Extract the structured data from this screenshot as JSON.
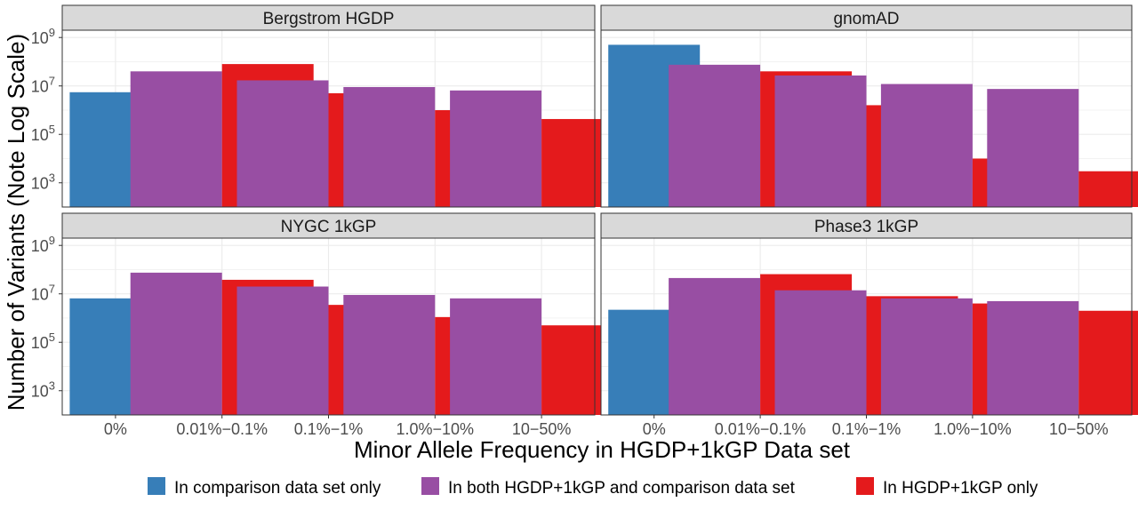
{
  "chart_data": {
    "type": "bar",
    "layout": "facet-grid-2x2",
    "y_scale": "log10",
    "ylim": [
      100,
      2000000000
    ],
    "y_ticks": [
      {
        "value": 1000,
        "base": "10",
        "exp": "3"
      },
      {
        "value": 100000,
        "base": "10",
        "exp": "5"
      },
      {
        "value": 10000000,
        "base": "10",
        "exp": "7"
      },
      {
        "value": 1000000000,
        "base": "10",
        "exp": "9"
      }
    ],
    "grid": true,
    "xlabel": "Minor Allele Frequency in HGDP+1kGP Data set",
    "ylabel": "Number of Variants (Note Log Scale)",
    "categories": [
      "0%",
      "0.01%−0.1%",
      "0.1%−1%",
      "1.0%−10%",
      "10−50%"
    ],
    "legend": {
      "position": "bottom",
      "entries": [
        {
          "key": "comparison",
          "label": "In comparison data set only",
          "color": "#377EB8"
        },
        {
          "key": "both",
          "label": "In both HGDP+1kGP and comparison data set",
          "color": "#984EA3"
        },
        {
          "key": "hgdp",
          "label": "In HGDP+1kGP only",
          "color": "#E41A1C"
        }
      ]
    },
    "panels": [
      {
        "title": "Bergstrom HGDP",
        "groups": [
          {
            "category": "0%",
            "bars": [
              {
                "series": "comparison",
                "value": 5500000
              }
            ]
          },
          {
            "category": "0.01%−0.1%",
            "bars": [
              {
                "series": "both",
                "value": 40000000
              },
              {
                "series": "hgdp",
                "value": 80000000
              }
            ]
          },
          {
            "category": "0.1%−1%",
            "bars": [
              {
                "series": "both",
                "value": 17000000
              },
              {
                "series": "hgdp",
                "value": 5000000
              }
            ]
          },
          {
            "category": "1.0%−10%",
            "bars": [
              {
                "series": "both",
                "value": 9000000
              },
              {
                "series": "hgdp",
                "value": 1000000
              }
            ]
          },
          {
            "category": "10−50%",
            "bars": [
              {
                "series": "both",
                "value": 6500000
              },
              {
                "series": "hgdp",
                "value": 430000
              }
            ]
          }
        ]
      },
      {
        "title": "gnomAD",
        "groups": [
          {
            "category": "0%",
            "bars": [
              {
                "series": "comparison",
                "value": 500000000
              }
            ]
          },
          {
            "category": "0.01%−0.1%",
            "bars": [
              {
                "series": "both",
                "value": 75000000
              },
              {
                "series": "hgdp",
                "value": 40000000
              }
            ]
          },
          {
            "category": "0.1%−1%",
            "bars": [
              {
                "series": "both",
                "value": 27000000
              },
              {
                "series": "hgdp",
                "value": 1600000
              }
            ]
          },
          {
            "category": "1.0%−10%",
            "bars": [
              {
                "series": "both",
                "value": 12000000
              },
              {
                "series": "hgdp",
                "value": 10000
              }
            ]
          },
          {
            "category": "10−50%",
            "bars": [
              {
                "series": "both",
                "value": 7500000
              },
              {
                "series": "hgdp",
                "value": 3000
              }
            ]
          }
        ]
      },
      {
        "title": "NYGC 1kGP",
        "groups": [
          {
            "category": "0%",
            "bars": [
              {
                "series": "comparison",
                "value": 6500000
              }
            ]
          },
          {
            "category": "0.01%−0.1%",
            "bars": [
              {
                "series": "both",
                "value": 75000000
              },
              {
                "series": "hgdp",
                "value": 38000000
              }
            ]
          },
          {
            "category": "0.1%−1%",
            "bars": [
              {
                "series": "both",
                "value": 20000000
              },
              {
                "series": "hgdp",
                "value": 3500000
              }
            ]
          },
          {
            "category": "1.0%−10%",
            "bars": [
              {
                "series": "both",
                "value": 9000000
              },
              {
                "series": "hgdp",
                "value": 1100000
              }
            ]
          },
          {
            "category": "10−50%",
            "bars": [
              {
                "series": "both",
                "value": 6500000
              },
              {
                "series": "hgdp",
                "value": 500000
              }
            ]
          }
        ]
      },
      {
        "title": "Phase3 1kGP",
        "groups": [
          {
            "category": "0%",
            "bars": [
              {
                "series": "comparison",
                "value": 2200000
              }
            ]
          },
          {
            "category": "0.01%−0.1%",
            "bars": [
              {
                "series": "both",
                "value": 45000000
              },
              {
                "series": "hgdp",
                "value": 65000000
              }
            ]
          },
          {
            "category": "0.1%−1%",
            "bars": [
              {
                "series": "both",
                "value": 14000000
              },
              {
                "series": "hgdp",
                "value": 8000000
              }
            ]
          },
          {
            "category": "1.0%−10%",
            "bars": [
              {
                "series": "both",
                "value": 6500000
              },
              {
                "series": "hgdp",
                "value": 4000000
              }
            ]
          },
          {
            "category": "10−50%",
            "bars": [
              {
                "series": "both",
                "value": 5000000
              },
              {
                "series": "hgdp",
                "value": 2000000
              }
            ]
          }
        ]
      }
    ]
  }
}
